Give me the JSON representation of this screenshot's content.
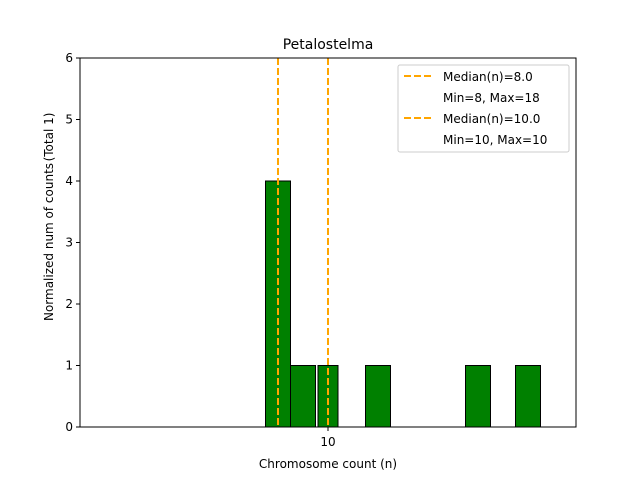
{
  "chart_data": {
    "type": "bar",
    "title": "Petalostelma",
    "xlabel": "Chromosome count (n)",
    "ylabel": "Normalized num of counts",
    "ylabel_note": "(Total 1)",
    "xlim": [
      0.08,
      19.92
    ],
    "ylim": [
      0,
      6
    ],
    "xticks": [
      10
    ],
    "yticks": [
      0,
      1,
      2,
      3,
      4,
      5,
      6
    ],
    "grid": false,
    "legend_position": "top-right",
    "bar_color": "#008000",
    "median_color": "#FFA500",
    "series": [
      {
        "name": "series-1",
        "bars": [
          {
            "x": 8,
            "width": 1,
            "value": 4
          },
          {
            "x": 9,
            "width": 1,
            "value": 1
          },
          {
            "x": 12,
            "width": 1,
            "value": 1
          },
          {
            "x": 16,
            "width": 1,
            "value": 1
          },
          {
            "x": 18,
            "width": 1,
            "value": 1
          }
        ],
        "median": 8.0,
        "legend": [
          "Median(n)=8.0",
          "Min=8, Max=18"
        ]
      },
      {
        "name": "series-2",
        "bars": [
          {
            "x": 10,
            "width": 0.8,
            "value": 1
          }
        ],
        "median": 10.0,
        "legend": [
          "Median(n)=10.0",
          "Min=10, Max=10"
        ]
      }
    ]
  }
}
